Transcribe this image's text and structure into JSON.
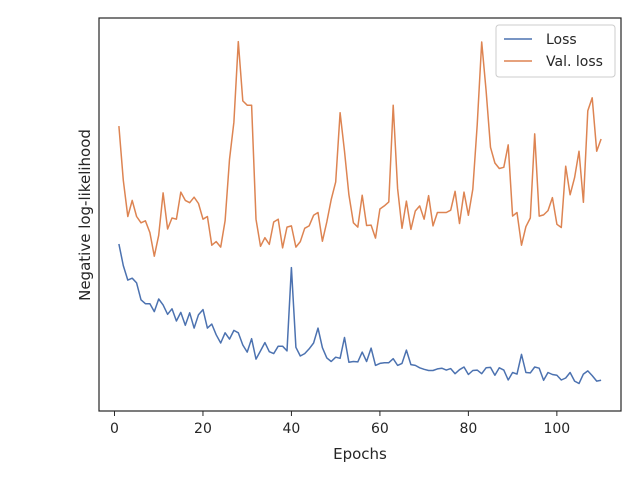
{
  "chart_data": {
    "type": "line",
    "title": "",
    "xlabel": "Epochs",
    "ylabel": "Negative log-likelihood",
    "xlim": [
      -3.5,
      114.5
    ],
    "ylim": [
      0,
      100
    ],
    "x_ticks": [
      0,
      20,
      40,
      60,
      80,
      100
    ],
    "y_ticks_shown": false,
    "grid": false,
    "legend_position": "top-right",
    "series": [
      {
        "name": "Loss",
        "color": "#4c72b0",
        "x": [
          1,
          2,
          3,
          4,
          5,
          6,
          7,
          8,
          9,
          10,
          11,
          12,
          13,
          14,
          15,
          16,
          17,
          18,
          19,
          20,
          21,
          22,
          23,
          24,
          25,
          26,
          27,
          28,
          29,
          30,
          31,
          32,
          33,
          34,
          35,
          36,
          37,
          38,
          39,
          40,
          41,
          42,
          43,
          44,
          45,
          46,
          47,
          48,
          49,
          50,
          51,
          52,
          53,
          54,
          55,
          56,
          57,
          58,
          59,
          60,
          61,
          62,
          63,
          64,
          65,
          66,
          67,
          68,
          69,
          70,
          71,
          72,
          73,
          74,
          75,
          76,
          77,
          78,
          79,
          80,
          81,
          82,
          83,
          84,
          85,
          86,
          87,
          88,
          89,
          90,
          91,
          92,
          93,
          94,
          95,
          96,
          97,
          98,
          99,
          100,
          101,
          102,
          103,
          104,
          105,
          106,
          107,
          108,
          109,
          110
        ],
        "values": [
          42.5,
          37,
          33.3,
          33.8,
          32.6,
          28.3,
          27.3,
          27.3,
          25.3,
          28.5,
          27,
          24.6,
          26,
          22.9,
          25.1,
          21.8,
          25,
          21.1,
          24.5,
          25.8,
          21.1,
          22.1,
          19.4,
          17.3,
          19.9,
          18.3,
          20.5,
          19.9,
          16.8,
          15,
          18.4,
          13.2,
          15.3,
          17.4,
          15.1,
          14.6,
          16.5,
          16.5,
          15.3,
          36.5,
          16.2,
          14,
          14.6,
          15.8,
          17.3,
          21.1,
          16.1,
          13.5,
          12.6,
          13.7,
          13.4,
          18.7,
          12.4,
          12.6,
          12.5,
          15,
          12.6,
          16,
          11.6,
          12.1,
          12.3,
          12.3,
          13.3,
          11.6,
          12.1,
          15.5,
          11.8,
          11.6,
          11,
          10.6,
          10.3,
          10.3,
          10.7,
          10.9,
          10.4,
          10.8,
          9.5,
          10.5,
          11.2,
          9.3,
          10.3,
          10.4,
          9.5,
          11,
          11.1,
          9.1,
          11,
          10.4,
          7.9,
          9.8,
          9.4,
          14.4,
          9.8,
          9.7,
          11.2,
          10.9,
          7.8,
          9.8,
          9.3,
          9.1,
          7.9,
          8.4,
          9.8,
          7.6,
          7,
          9.4,
          10.2,
          9,
          7.6,
          7.8
        ]
      },
      {
        "name": "Val. loss",
        "color": "#dd8452",
        "x": [
          1,
          2,
          3,
          4,
          5,
          6,
          7,
          8,
          9,
          10,
          11,
          12,
          13,
          14,
          15,
          16,
          17,
          18,
          19,
          20,
          21,
          22,
          23,
          24,
          25,
          26,
          27,
          28,
          29,
          30,
          31,
          32,
          33,
          34,
          35,
          36,
          37,
          38,
          39,
          40,
          41,
          42,
          43,
          44,
          45,
          46,
          47,
          48,
          49,
          50,
          51,
          52,
          53,
          54,
          55,
          56,
          57,
          58,
          59,
          60,
          61,
          62,
          63,
          64,
          65,
          66,
          67,
          68,
          69,
          70,
          71,
          72,
          73,
          74,
          75,
          76,
          77,
          78,
          79,
          80,
          81,
          82,
          83,
          84,
          85,
          86,
          87,
          88,
          89,
          90,
          91,
          92,
          93,
          94,
          95,
          96,
          97,
          98,
          99,
          100,
          101,
          102,
          103,
          104,
          105,
          106,
          107,
          108,
          109,
          110
        ],
        "values": [
          72.5,
          58.7,
          49.5,
          53.6,
          49.5,
          47.9,
          48.4,
          45.4,
          39.4,
          44.7,
          55.5,
          46.3,
          49.1,
          48.8,
          55.7,
          53.6,
          53,
          54.4,
          52.8,
          48.8,
          49.5,
          42.2,
          43.1,
          41.7,
          48.4,
          64,
          73.5,
          94,
          78.9,
          77.8,
          77.8,
          48.8,
          41.9,
          44.1,
          42.4,
          48.1,
          48.8,
          41.5,
          46.8,
          47.1,
          41.7,
          43.1,
          46.5,
          47.1,
          49.8,
          50.5,
          43.2,
          48.1,
          53.8,
          58.3,
          75.9,
          66.1,
          55,
          47.9,
          46.8,
          54.9,
          47.2,
          47.3,
          44,
          51.4,
          52.2,
          53.2,
          77.8,
          56.6,
          46.5,
          53.4,
          46.2,
          50.9,
          52.2,
          48.8,
          54.8,
          47.1,
          50.5,
          50.5,
          50.5,
          51.1,
          55.9,
          47.7,
          55.7,
          49.8,
          56.4,
          72.8,
          93.9,
          81.5,
          67.1,
          63.1,
          61.7,
          62,
          67.7,
          49.6,
          50.5,
          42.2,
          46.9,
          49.1,
          70.5,
          49.6,
          49.9,
          51,
          54.3,
          47.5,
          46.7,
          62.3,
          55,
          59.4,
          66.1,
          53.1,
          76.4,
          79.7,
          66.1,
          69.2
        ]
      }
    ]
  }
}
